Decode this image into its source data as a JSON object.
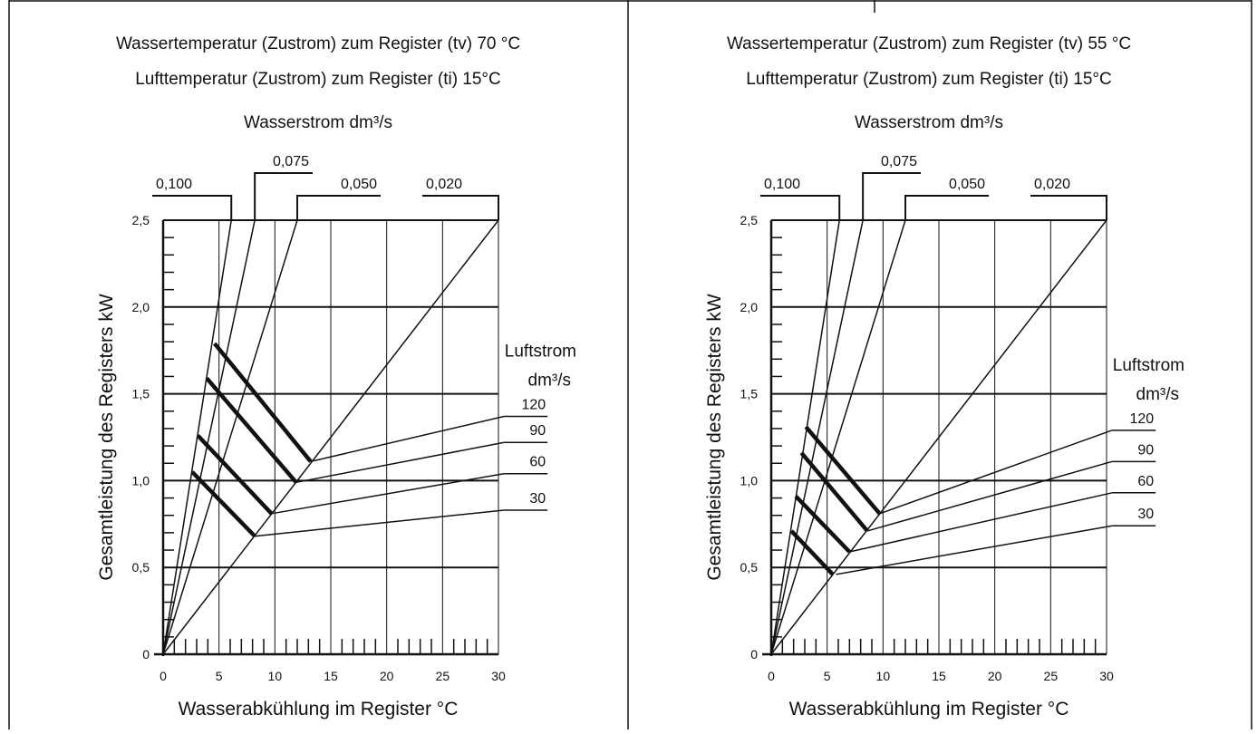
{
  "panels": [
    {
      "title_line1": "Wassertemperatur (Zustrom) zum Register (tv) 70 °C",
      "title_line2": "Lufttemperatur (Zustrom) zum Register (ti) 15°C",
      "top_label": "Wasserstrom dm³/s",
      "water_flow_labels": [
        "0,100",
        "0,075",
        "0,050",
        "0,020"
      ],
      "air_flow_title_1": "Luftstrom",
      "air_flow_title_2": "dm³/s",
      "air_flow_labels": [
        "120",
        "90",
        "60",
        "30"
      ],
      "x_tick_labels": [
        "0",
        "5",
        "10",
        "15",
        "20",
        "25",
        "30"
      ],
      "y_tick_labels": [
        "0",
        "0,5",
        "1,0",
        "1,5",
        "2,0",
        "2,5"
      ],
      "xlabel": "Wasserabkühlung im Register °C",
      "ylabel": "Gesamtleistung des Registers kW"
    },
    {
      "title_line1": "Wassertemperatur (Zustrom) zum Register (tv) 55 °C",
      "title_line2": "Lufttemperatur (Zustrom) zum Register (ti) 15°C",
      "top_label": "Wasserstrom dm³/s",
      "water_flow_labels": [
        "0,100",
        "0,075",
        "0,050",
        "0,020"
      ],
      "air_flow_title_1": "Luftstrom",
      "air_flow_title_2": "dm³/s",
      "air_flow_labels": [
        "120",
        "90",
        "60",
        "30"
      ],
      "x_tick_labels": [
        "0",
        "5",
        "10",
        "15",
        "20",
        "25",
        "30"
      ],
      "y_tick_labels": [
        "0",
        "0,5",
        "1,0",
        "1,5",
        "2,0",
        "2,5"
      ],
      "xlabel": "Wasserabkühlung im Register °C",
      "ylabel": "Gesamtleistung des Registers kW"
    }
  ],
  "chart_data": [
    {
      "type": "line",
      "title": "Wassertemperatur (Zustrom) zum Register (tv) 70 °C / Lufttemperatur (Zustrom) zum Register (ti) 15°C",
      "xlabel": "Wasserabkühlung im Register °C",
      "ylabel": "Gesamtleistung des Registers kW",
      "xlim": [
        0,
        30
      ],
      "ylim": [
        0,
        2.5
      ],
      "grid": true,
      "water_flow_lines": [
        {
          "name": "0,100",
          "x": [
            0,
            6.1
          ],
          "y": [
            0,
            2.5
          ]
        },
        {
          "name": "0,075",
          "x": [
            0,
            8.2
          ],
          "y": [
            0,
            2.5
          ]
        },
        {
          "name": "0,050",
          "x": [
            0,
            12.0
          ],
          "y": [
            0,
            2.5
          ]
        },
        {
          "name": "0,020",
          "x": [
            0,
            30.0
          ],
          "y": [
            0,
            2.5
          ]
        }
      ],
      "air_flow_lines": [
        {
          "name": "120",
          "x": [
            13.2,
            30.5
          ],
          "y": [
            1.11,
            1.37
          ]
        },
        {
          "name": "90",
          "x": [
            11.9,
            30.5
          ],
          "y": [
            0.99,
            1.22
          ]
        },
        {
          "name": "60",
          "x": [
            9.7,
            30.5
          ],
          "y": [
            0.81,
            1.04
          ]
        },
        {
          "name": "30",
          "x": [
            8.2,
            30.5
          ],
          "y": [
            0.68,
            0.83
          ]
        }
      ],
      "operating_segments": [
        {
          "name": "120",
          "x": [
            4.6,
            13.2
          ],
          "y": [
            1.79,
            1.11
          ]
        },
        {
          "name": "90",
          "x": [
            3.9,
            11.9
          ],
          "y": [
            1.59,
            0.99
          ]
        },
        {
          "name": "60",
          "x": [
            3.1,
            9.7
          ],
          "y": [
            1.26,
            0.81
          ]
        },
        {
          "name": "30",
          "x": [
            2.6,
            8.2
          ],
          "y": [
            1.05,
            0.68
          ]
        }
      ]
    },
    {
      "type": "line",
      "title": "Wassertemperatur (Zustrom) zum Register (tv) 55 °C / Lufttemperatur (Zustrom) zum Register (ti) 15°C",
      "xlabel": "Wasserabkühlung im Register °C",
      "ylabel": "Gesamtleistung des Registers kW",
      "xlim": [
        0,
        30
      ],
      "ylim": [
        0,
        2.5
      ],
      "grid": true,
      "water_flow_lines": [
        {
          "name": "0,100",
          "x": [
            0,
            6.1
          ],
          "y": [
            0,
            2.5
          ]
        },
        {
          "name": "0,075",
          "x": [
            0,
            8.2
          ],
          "y": [
            0,
            2.5
          ]
        },
        {
          "name": "0,050",
          "x": [
            0,
            12.0
          ],
          "y": [
            0,
            2.5
          ]
        },
        {
          "name": "0,020",
          "x": [
            0,
            30.0
          ],
          "y": [
            0,
            2.5
          ]
        }
      ],
      "air_flow_lines": [
        {
          "name": "120",
          "x": [
            9.7,
            30.5
          ],
          "y": [
            0.81,
            1.29
          ]
        },
        {
          "name": "90",
          "x": [
            8.6,
            30.5
          ],
          "y": [
            0.71,
            1.11
          ]
        },
        {
          "name": "60",
          "x": [
            7.0,
            30.5
          ],
          "y": [
            0.59,
            0.93
          ]
        },
        {
          "name": "30",
          "x": [
            5.8,
            30.5
          ],
          "y": [
            0.46,
            0.74
          ]
        }
      ],
      "operating_segments": [
        {
          "name": "120",
          "x": [
            3.1,
            9.7
          ],
          "y": [
            1.31,
            0.81
          ]
        },
        {
          "name": "90",
          "x": [
            2.7,
            8.6
          ],
          "y": [
            1.16,
            0.71
          ]
        },
        {
          "name": "60",
          "x": [
            2.2,
            7.0
          ],
          "y": [
            0.91,
            0.59
          ]
        },
        {
          "name": "30",
          "x": [
            1.8,
            5.5
          ],
          "y": [
            0.71,
            0.46
          ]
        }
      ]
    }
  ]
}
